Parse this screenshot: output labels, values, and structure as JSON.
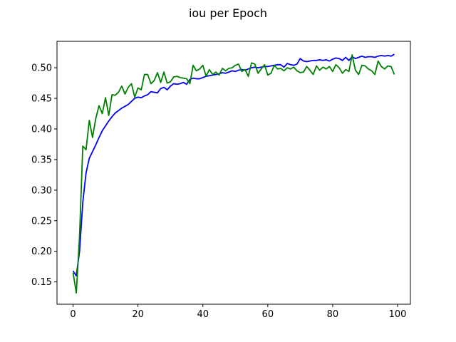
{
  "chart_data": {
    "type": "line",
    "title": "iou per Epoch",
    "xlabel": "",
    "ylabel": "",
    "xlim": [
      -4.95,
      103.95
    ],
    "ylim": [
      0.1135,
      0.5432
    ],
    "xticks": [
      0,
      20,
      40,
      60,
      80,
      100
    ],
    "yticks": [
      0.15,
      0.2,
      0.25,
      0.3,
      0.35,
      0.4,
      0.45,
      0.5
    ],
    "grid": false,
    "legend": "none",
    "series": [
      {
        "color": "#0000ff",
        "x": [
          0,
          1,
          2,
          3,
          4,
          5,
          6,
          7,
          8,
          9,
          10,
          11,
          12,
          13,
          14,
          15,
          16,
          17,
          18,
          19,
          20,
          21,
          22,
          23,
          24,
          25,
          26,
          27,
          28,
          29,
          30,
          31,
          32,
          33,
          34,
          35,
          36,
          37,
          38,
          39,
          40,
          41,
          42,
          43,
          44,
          45,
          46,
          47,
          48,
          49,
          50,
          51,
          52,
          53,
          54,
          55,
          56,
          57,
          58,
          59,
          60,
          61,
          62,
          63,
          64,
          65,
          66,
          67,
          68,
          69,
          70,
          71,
          72,
          73,
          74,
          75,
          76,
          77,
          78,
          79,
          80,
          81,
          82,
          83,
          84,
          85,
          86,
          87,
          88,
          89,
          90,
          91,
          92,
          93,
          94,
          95,
          96,
          97,
          98,
          99
        ],
        "y": [
          0.168,
          0.16,
          0.2,
          0.28,
          0.328,
          0.352,
          0.363,
          0.374,
          0.386,
          0.397,
          0.405,
          0.413,
          0.42,
          0.426,
          0.43,
          0.434,
          0.437,
          0.44,
          0.445,
          0.45,
          0.452,
          0.451,
          0.454,
          0.456,
          0.461,
          0.46,
          0.459,
          0.466,
          0.468,
          0.464,
          0.47,
          0.474,
          0.473,
          0.474,
          0.476,
          0.473,
          0.481,
          0.483,
          0.482,
          0.482,
          0.484,
          0.486,
          0.487,
          0.488,
          0.489,
          0.49,
          0.492,
          0.491,
          0.493,
          0.495,
          0.494,
          0.496,
          0.497,
          0.496,
          0.498,
          0.5,
          0.501,
          0.5,
          0.501,
          0.502,
          0.502,
          0.503,
          0.504,
          0.505,
          0.505,
          0.501,
          0.507,
          0.505,
          0.504,
          0.506,
          0.515,
          0.511,
          0.51,
          0.511,
          0.512,
          0.512,
          0.513,
          0.512,
          0.513,
          0.511,
          0.514,
          0.516,
          0.515,
          0.512,
          0.517,
          0.512,
          0.518,
          0.515,
          0.517,
          0.519,
          0.517,
          0.518,
          0.518,
          0.517,
          0.519,
          0.52,
          0.519,
          0.52,
          0.519,
          0.522
        ]
      },
      {
        "color": "#008000",
        "x": [
          0,
          1,
          2,
          3,
          4,
          5,
          6,
          7,
          8,
          9,
          10,
          11,
          12,
          13,
          14,
          15,
          16,
          17,
          18,
          19,
          20,
          21,
          22,
          23,
          24,
          25,
          26,
          27,
          28,
          29,
          30,
          31,
          32,
          33,
          34,
          35,
          36,
          37,
          38,
          39,
          40,
          41,
          42,
          43,
          44,
          45,
          46,
          47,
          48,
          49,
          50,
          51,
          52,
          53,
          54,
          55,
          56,
          57,
          58,
          59,
          60,
          61,
          62,
          63,
          64,
          65,
          66,
          67,
          68,
          69,
          70,
          71,
          72,
          73,
          74,
          75,
          76,
          77,
          78,
          79,
          80,
          81,
          82,
          83,
          84,
          85,
          86,
          87,
          88,
          89,
          90,
          91,
          92,
          93,
          94,
          95,
          96,
          97,
          98,
          99
        ],
        "y": [
          0.165,
          0.132,
          0.225,
          0.372,
          0.366,
          0.414,
          0.386,
          0.417,
          0.438,
          0.425,
          0.451,
          0.422,
          0.456,
          0.455,
          0.46,
          0.47,
          0.457,
          0.468,
          0.474,
          0.452,
          0.467,
          0.464,
          0.489,
          0.489,
          0.474,
          0.479,
          0.492,
          0.476,
          0.493,
          0.475,
          0.477,
          0.485,
          0.486,
          0.484,
          0.483,
          0.482,
          0.474,
          0.504,
          0.495,
          0.498,
          0.504,
          0.486,
          0.497,
          0.489,
          0.493,
          0.488,
          0.499,
          0.495,
          0.499,
          0.5,
          0.504,
          0.506,
          0.494,
          0.497,
          0.486,
          0.508,
          0.506,
          0.491,
          0.498,
          0.505,
          0.488,
          0.491,
          0.504,
          0.498,
          0.499,
          0.495,
          0.5,
          0.498,
          0.501,
          0.495,
          0.492,
          0.493,
          0.502,
          0.496,
          0.489,
          0.503,
          0.496,
          0.501,
          0.498,
          0.502,
          0.494,
          0.505,
          0.5,
          0.491,
          0.497,
          0.494,
          0.521,
          0.496,
          0.489,
          0.504,
          0.503,
          0.498,
          0.495,
          0.489,
          0.511,
          0.502,
          0.498,
          0.503,
          0.502,
          0.489
        ]
      }
    ]
  }
}
